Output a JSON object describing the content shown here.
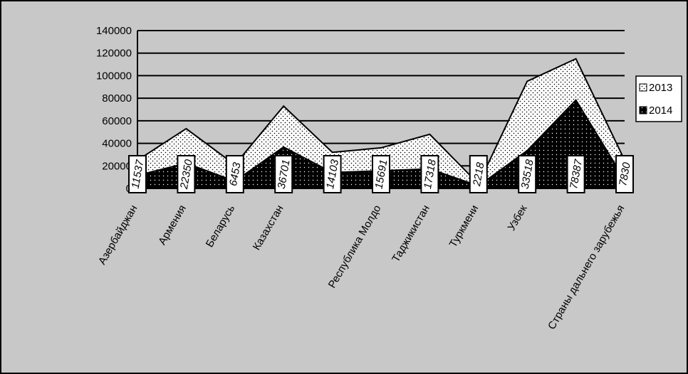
{
  "chart_data": {
    "type": "area",
    "categories": [
      "Азербайджан",
      "Армения",
      "Беларусь",
      "Казахстан",
      null,
      "Республика Молдо",
      "Таджикистан",
      "Туркмени",
      "Узбек",
      null,
      "Страны дальнего зарубежья"
    ],
    "series": [
      {
        "name": "2013",
        "color": "#ffffff",
        "values": [
          25000,
          53000,
          21000,
          73000,
          32000,
          36000,
          48000,
          4000,
          95000,
          115000,
          25000
        ]
      },
      {
        "name": "2014",
        "color": "#000000",
        "values": [
          11537,
          22350,
          6453,
          36701,
          14103,
          15691,
          17318,
          2218,
          33518,
          78387,
          7830
        ]
      }
    ],
    "data_labels_series": 1,
    "ylim": [
      0,
      140000
    ],
    "yticks": [
      0,
      20000,
      40000,
      60000,
      80000,
      100000,
      120000,
      140000
    ],
    "grid": true,
    "legend": "right"
  }
}
